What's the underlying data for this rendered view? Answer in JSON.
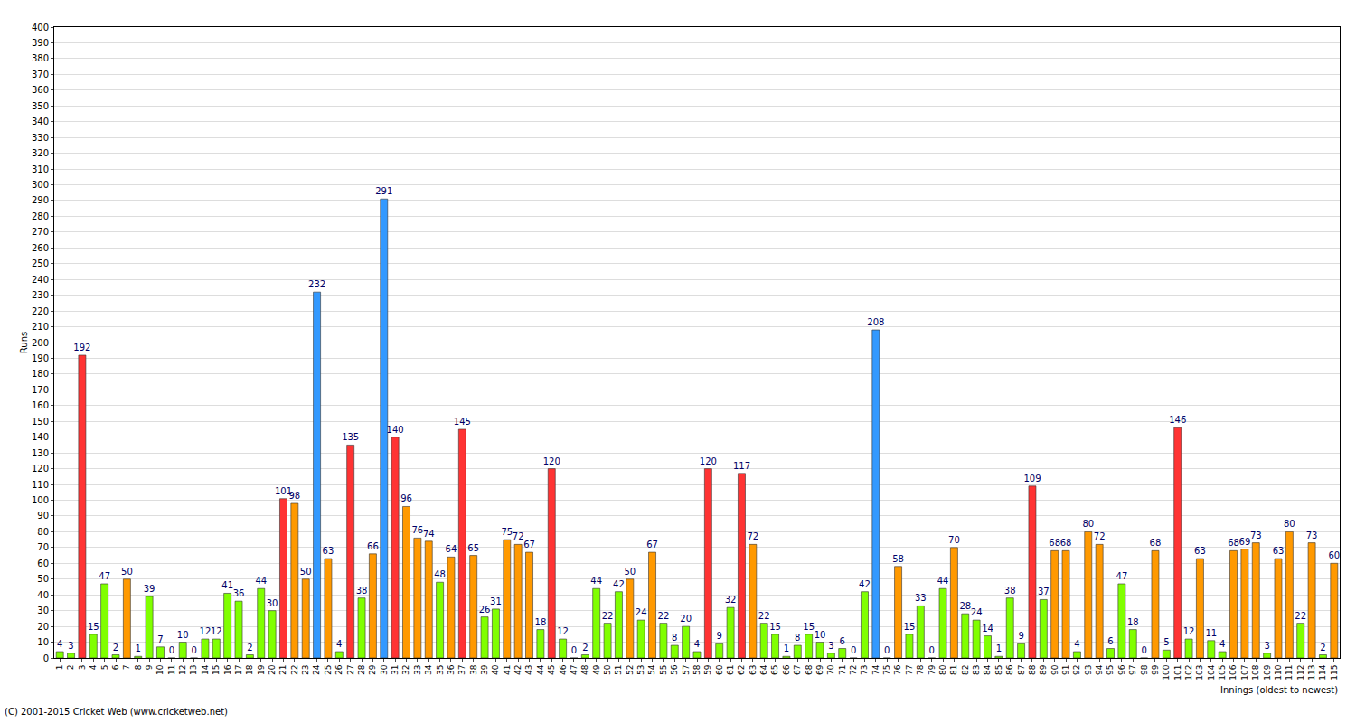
{
  "chart_data": {
    "type": "bar",
    "x_label": "Innings (oldest to newest)",
    "y_label": "Runs",
    "annotations": [
      "(C) 2001-2015 Cricket Web (www.cricketweb.net)"
    ],
    "categories": [
      "1",
      "2",
      "3",
      "4",
      "5",
      "6",
      "7",
      "8",
      "9",
      "10",
      "11",
      "12",
      "13",
      "14",
      "15",
      "16",
      "17",
      "18",
      "19",
      "20",
      "21",
      "22",
      "23",
      "24",
      "25",
      "26",
      "27",
      "28",
      "29",
      "30",
      "31",
      "32",
      "33",
      "34",
      "35",
      "36",
      "37",
      "38",
      "39",
      "40",
      "41",
      "42",
      "43",
      "44",
      "45",
      "46",
      "47",
      "48",
      "49",
      "50",
      "51",
      "52",
      "53",
      "54",
      "55",
      "56",
      "57",
      "58",
      "59",
      "60",
      "61",
      "62",
      "63",
      "64",
      "65",
      "66",
      "67",
      "68",
      "69",
      "70",
      "71",
      "72",
      "73",
      "74",
      "75",
      "76",
      "77",
      "78",
      "79",
      "80",
      "81",
      "82",
      "83",
      "84",
      "85",
      "86",
      "87",
      "88",
      "89",
      "90",
      "91",
      "92",
      "93",
      "94",
      "95",
      "96",
      "97",
      "98",
      "99",
      "100",
      "101",
      "102",
      "103",
      "104",
      "105",
      "106",
      "107",
      "108",
      "109",
      "110",
      "111",
      "112",
      "113",
      "114",
      "115"
    ],
    "values": [
      4,
      3,
      192,
      15,
      47,
      2,
      50,
      1,
      39,
      7,
      0,
      10,
      0,
      12,
      12,
      41,
      36,
      2,
      44,
      30,
      101,
      98,
      50,
      232,
      63,
      4,
      135,
      38,
      66,
      291,
      140,
      96,
      76,
      74,
      48,
      64,
      145,
      65,
      26,
      31,
      75,
      72,
      67,
      18,
      120,
      12,
      0,
      2,
      44,
      22,
      42,
      50,
      24,
      67,
      22,
      8,
      20,
      4,
      120,
      9,
      32,
      117,
      72,
      22,
      15,
      1,
      8,
      15,
      10,
      3,
      6,
      0,
      42,
      208,
      0,
      58,
      15,
      33,
      0,
      44,
      70,
      28,
      24,
      14,
      1,
      38,
      9,
      109,
      37,
      68,
      68,
      4,
      80,
      72,
      6,
      47,
      18,
      0,
      68,
      5,
      146,
      12,
      63,
      11,
      4,
      68,
      69,
      73,
      3,
      63,
      80,
      22,
      73,
      2,
      60
    ],
    "colors": [
      "#80ff00",
      "#80ff00",
      "#ff3333",
      "#80ff00",
      "#80ff00",
      "#80ff00",
      "#ff9900",
      "#80ff00",
      "#80ff00",
      "#80ff00",
      "#80ff00",
      "#80ff00",
      "#80ff00",
      "#80ff00",
      "#80ff00",
      "#80ff00",
      "#80ff00",
      "#80ff00",
      "#80ff00",
      "#80ff00",
      "#ff3333",
      "#ff9900",
      "#ff9900",
      "#3399ff",
      "#ff9900",
      "#80ff00",
      "#ff3333",
      "#80ff00",
      "#ff9900",
      "#3399ff",
      "#ff3333",
      "#ff9900",
      "#ff9900",
      "#ff9900",
      "#80ff00",
      "#ff9900",
      "#ff3333",
      "#ff9900",
      "#80ff00",
      "#80ff00",
      "#ff9900",
      "#ff9900",
      "#ff9900",
      "#80ff00",
      "#ff3333",
      "#80ff00",
      "#80ff00",
      "#80ff00",
      "#80ff00",
      "#80ff00",
      "#80ff00",
      "#ff9900",
      "#80ff00",
      "#ff9900",
      "#80ff00",
      "#80ff00",
      "#80ff00",
      "#80ff00",
      "#ff3333",
      "#80ff00",
      "#80ff00",
      "#ff3333",
      "#ff9900",
      "#80ff00",
      "#80ff00",
      "#80ff00",
      "#80ff00",
      "#80ff00",
      "#80ff00",
      "#80ff00",
      "#80ff00",
      "#80ff00",
      "#80ff00",
      "#3399ff",
      "#80ff00",
      "#ff9900",
      "#80ff00",
      "#80ff00",
      "#80ff00",
      "#80ff00",
      "#ff9900",
      "#80ff00",
      "#80ff00",
      "#80ff00",
      "#80ff00",
      "#80ff00",
      "#80ff00",
      "#ff3333",
      "#80ff00",
      "#ff9900",
      "#ff9900",
      "#80ff00",
      "#ff9900",
      "#ff9900",
      "#80ff00",
      "#80ff00",
      "#80ff00",
      "#80ff00",
      "#ff9900",
      "#80ff00",
      "#ff3333",
      "#80ff00",
      "#ff9900",
      "#80ff00",
      "#80ff00",
      "#ff9900",
      "#ff9900",
      "#ff9900",
      "#80ff00",
      "#ff9900",
      "#ff9900",
      "#80ff00",
      "#ff9900",
      "#80ff00",
      "#ff9900"
    ],
    "ylim": [
      0,
      400
    ],
    "yticks": [
      0,
      10,
      20,
      30,
      40,
      50,
      60,
      70,
      80,
      90,
      100,
      110,
      120,
      130,
      140,
      150,
      160,
      170,
      180,
      190,
      200,
      210,
      220,
      230,
      240,
      250,
      260,
      270,
      280,
      290,
      300,
      310,
      320,
      330,
      340,
      350,
      360,
      370,
      380,
      390,
      400
    ],
    "grid": true,
    "data_labels": true
  }
}
